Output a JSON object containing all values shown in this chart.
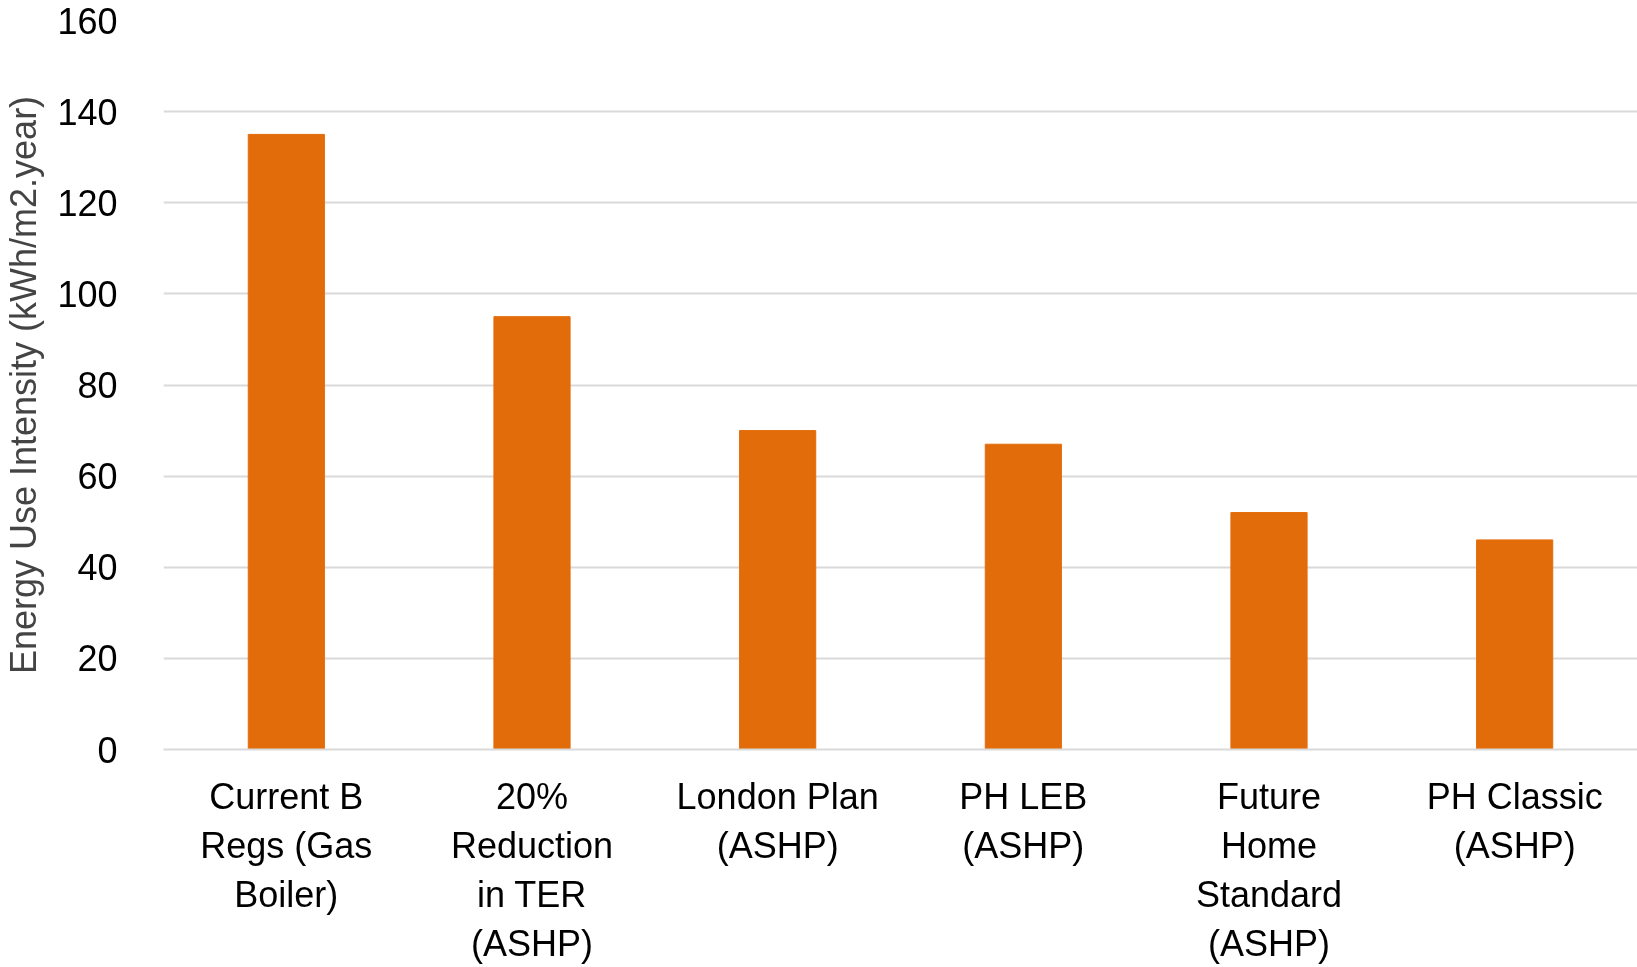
{
  "chart_data": {
    "type": "bar",
    "ylabel": "Energy Use Intensity (kWh/m2.year)",
    "categories": [
      "Current B\nRegs (Gas\nBoiler)",
      "20%\nReduction\nin TER\n(ASHP)",
      "London Plan\n(ASHP)",
      "PH LEB\n(ASHP)",
      "Future\nHome\nStandard\n(ASHP)",
      "PH Classic\n(ASHP)"
    ],
    "values": [
      135,
      95,
      70,
      67,
      52,
      46
    ],
    "color": "#e36c0a",
    "ylim": [
      0,
      160
    ],
    "yticks": [
      0,
      20,
      40,
      60,
      80,
      100,
      120,
      140,
      160
    ],
    "grid": "y"
  }
}
